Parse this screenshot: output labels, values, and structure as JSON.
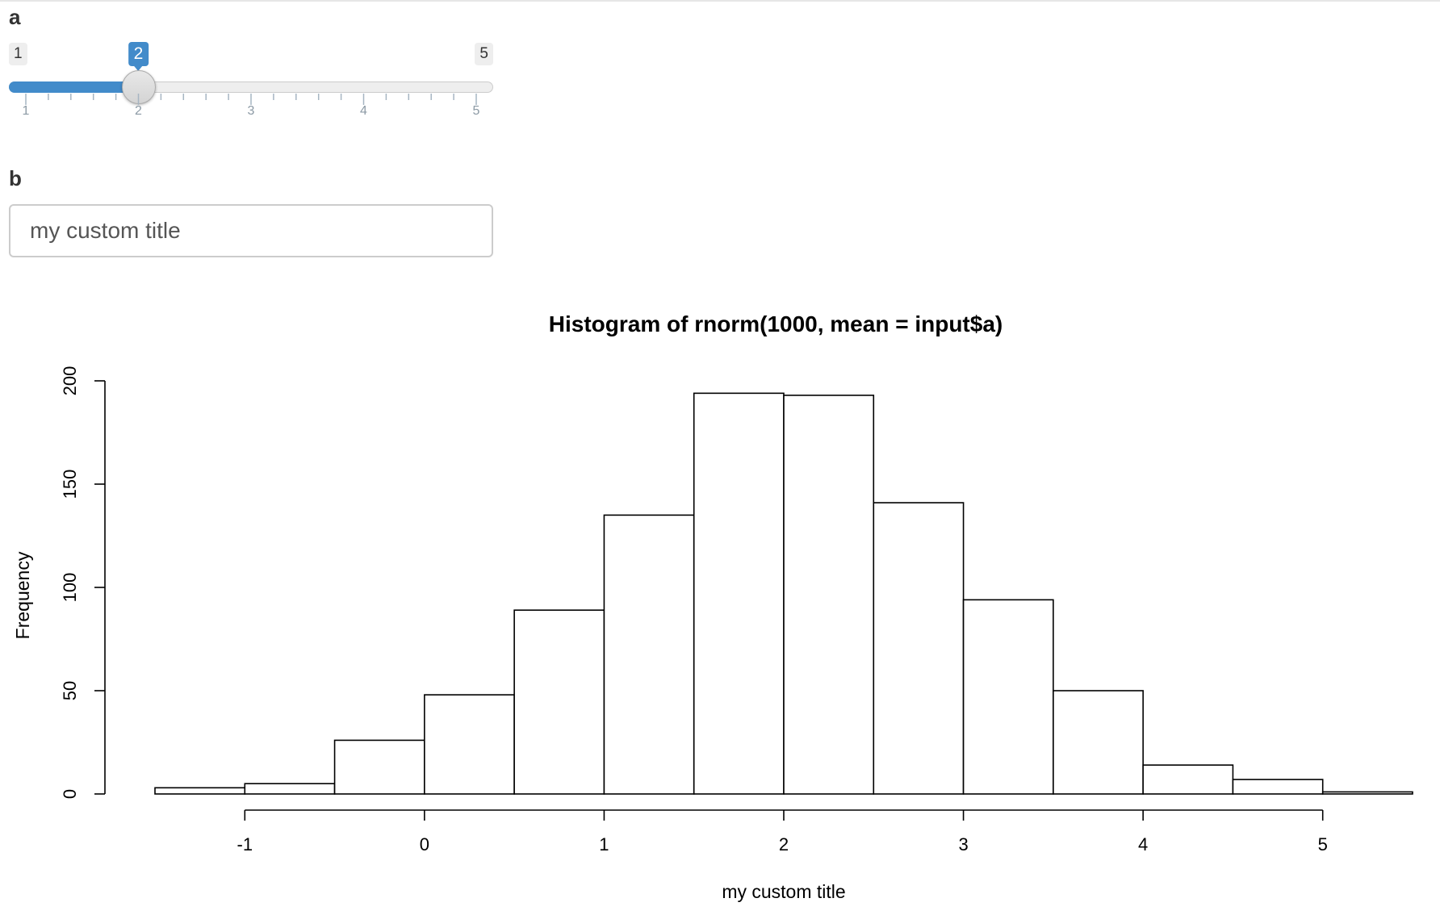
{
  "inputs": {
    "a": {
      "label": "a",
      "min": 1,
      "max": 5,
      "value": 2,
      "min_label": "1",
      "max_label": "5",
      "value_label": "2",
      "ticks": [
        "1",
        "2",
        "3",
        "4",
        "5"
      ]
    },
    "b": {
      "label": "b",
      "value": "my custom title"
    }
  },
  "colors": {
    "accent": "#428bca",
    "track": "#eeeeee",
    "tick_text": "#8c9aa5"
  },
  "chart_data": {
    "type": "bar",
    "title": "Histogram of rnorm(1000, mean = input$a)",
    "xlabel": "my custom title",
    "ylabel": "Frequency",
    "bin_edges": [
      -1.5,
      -1,
      -0.5,
      0,
      0.5,
      1,
      1.5,
      2,
      2.5,
      3,
      3.5,
      4,
      4.5,
      5,
      5.5
    ],
    "values": [
      3,
      5,
      26,
      48,
      89,
      135,
      194,
      193,
      141,
      94,
      50,
      14,
      7,
      1
    ],
    "xlim": [
      -1.5,
      5.5
    ],
    "ylim": [
      0,
      200
    ],
    "x_ticks": [
      -1,
      0,
      1,
      2,
      3,
      4,
      5
    ],
    "x_tick_labels": [
      "-1",
      "0",
      "1",
      "2",
      "3",
      "4",
      "5"
    ],
    "y_ticks": [
      0,
      50,
      100,
      150,
      200
    ],
    "y_tick_labels": [
      "0",
      "50",
      "100",
      "150",
      "200"
    ],
    "grid": false,
    "legend": "none"
  }
}
